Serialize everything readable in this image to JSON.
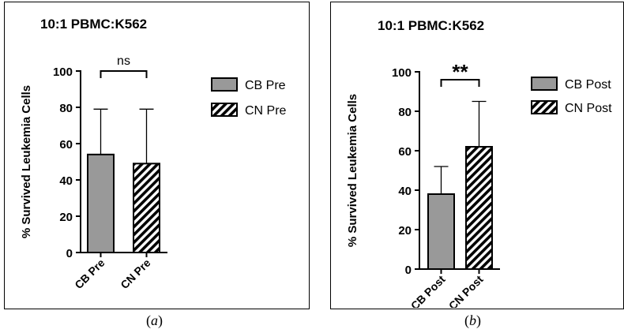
{
  "panels": [
    {
      "caption_open": "(",
      "caption_letter": "a",
      "caption_close": ")"
    },
    {
      "caption_open": "(",
      "caption_letter": "b",
      "caption_close": ")"
    }
  ],
  "colors": {
    "bar_solid": "#999999",
    "bar_hatch": "#000000",
    "axis": "#000000"
  },
  "chart_data": [
    {
      "type": "bar",
      "title": "10:1 PBMC:K562",
      "ylabel": "% Survived Leukemia Cells",
      "xlabel": "",
      "ylim": [
        0,
        100
      ],
      "yticks": [
        "0",
        "20",
        "40",
        "60",
        "80",
        "100"
      ],
      "categories": [
        "CB Pre",
        "CN Pre"
      ],
      "values": [
        54,
        49
      ],
      "error_upper": [
        79,
        79
      ],
      "fills": [
        "solid",
        "hatch"
      ],
      "legend": [
        "CB Pre",
        "CN Pre"
      ],
      "legend_position": "right",
      "significance": "ns",
      "significance_bracket_y": 100
    },
    {
      "type": "bar",
      "title": "10:1 PBMC:K562",
      "ylabel": "% Survived Leukemia Cells",
      "xlabel": "",
      "ylim": [
        0,
        100
      ],
      "yticks": [
        "0",
        "20",
        "40",
        "60",
        "80",
        "100"
      ],
      "categories": [
        "CB Post",
        "CN Post"
      ],
      "values": [
        38,
        62
      ],
      "error_upper": [
        52,
        85
      ],
      "fills": [
        "solid",
        "hatch"
      ],
      "legend": [
        "CB Post",
        "CN Post"
      ],
      "legend_position": "right",
      "significance": "**",
      "significance_bracket_y": 96
    }
  ]
}
